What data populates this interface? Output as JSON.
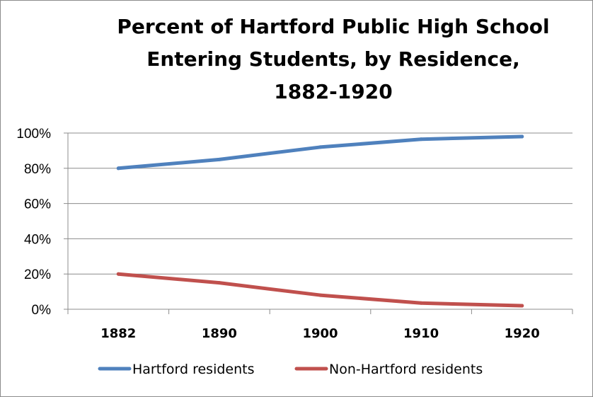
{
  "chart_data": {
    "type": "line",
    "title_lines": [
      "Percent of Hartford Public High School",
      "Entering Students, by Residence,",
      "1882-1920"
    ],
    "x": [
      "1882",
      "1890",
      "1900",
      "1910",
      "1920"
    ],
    "y_ticks": [
      "0%",
      "20%",
      "40%",
      "60%",
      "80%",
      "100%"
    ],
    "ylim": [
      0,
      100
    ],
    "grid": true,
    "legend_position": "bottom",
    "series": [
      {
        "name": "Hartford residents",
        "color": "#4f81bd",
        "values": [
          80,
          85,
          92,
          96.5,
          98
        ]
      },
      {
        "name": "Non-Hartford residents",
        "color": "#c0504d",
        "values": [
          20,
          15,
          8,
          3.5,
          2
        ]
      }
    ]
  }
}
